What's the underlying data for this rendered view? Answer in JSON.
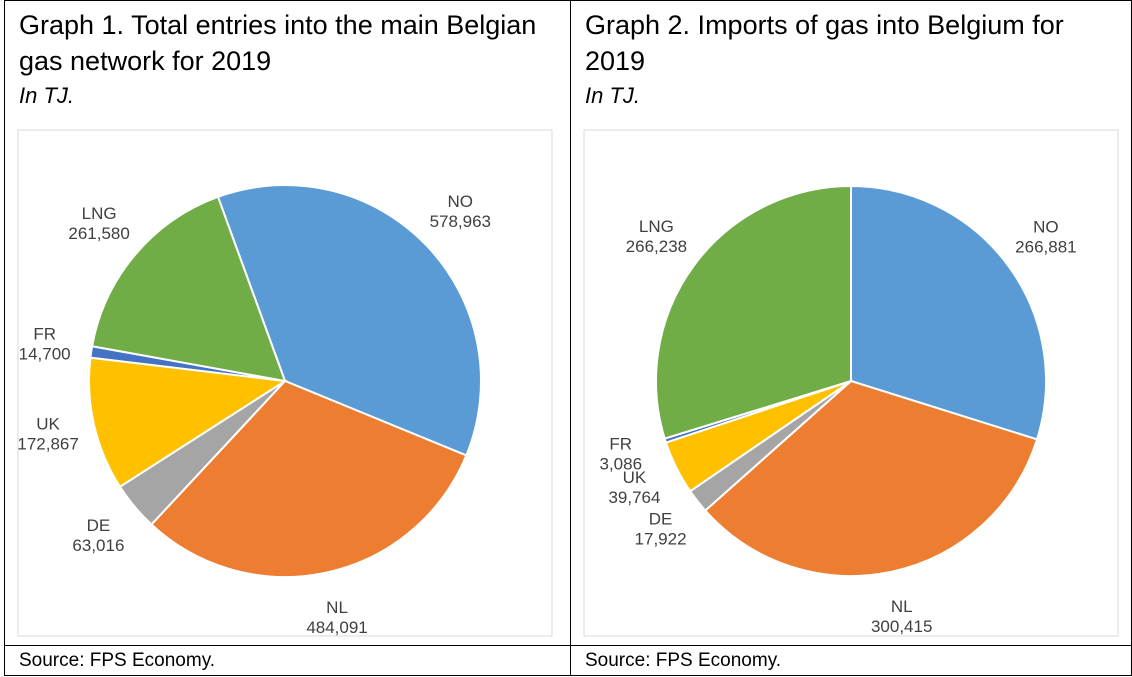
{
  "chart_data": [
    {
      "type": "pie",
      "title": "Graph 1. Total entries into the main Belgian gas network for 2019",
      "subtitle": "In TJ.",
      "source": "Source: FPS Economy.",
      "categories": [
        "NO",
        "NL",
        "DE",
        "UK",
        "FR",
        "LNG"
      ],
      "values": [
        578963,
        484091,
        63016,
        172867,
        14700,
        261580
      ],
      "value_labels": [
        "578,963",
        "484,091",
        "63,016",
        "172,867",
        "14,700",
        "261,580"
      ],
      "colors": [
        "#5b9bd5",
        "#ed7d31",
        "#a5a5a5",
        "#ffc000",
        "#4472c4",
        "#70ad47"
      ]
    },
    {
      "type": "pie",
      "title": "Graph 2. Imports of gas into Belgium for 2019",
      "subtitle": "In TJ.",
      "source": "Source: FPS Economy.",
      "categories": [
        "NO",
        "NL",
        "DE",
        "UK",
        "FR",
        "LNG"
      ],
      "values": [
        266881,
        300415,
        17922,
        39764,
        3086,
        266238
      ],
      "value_labels": [
        "266,881",
        "300,415",
        "17,922",
        "39,764",
        "3,086",
        "266,238"
      ],
      "colors": [
        "#5b9bd5",
        "#ed7d31",
        "#a5a5a5",
        "#ffc000",
        "#4472c4",
        "#70ad47"
      ]
    }
  ]
}
